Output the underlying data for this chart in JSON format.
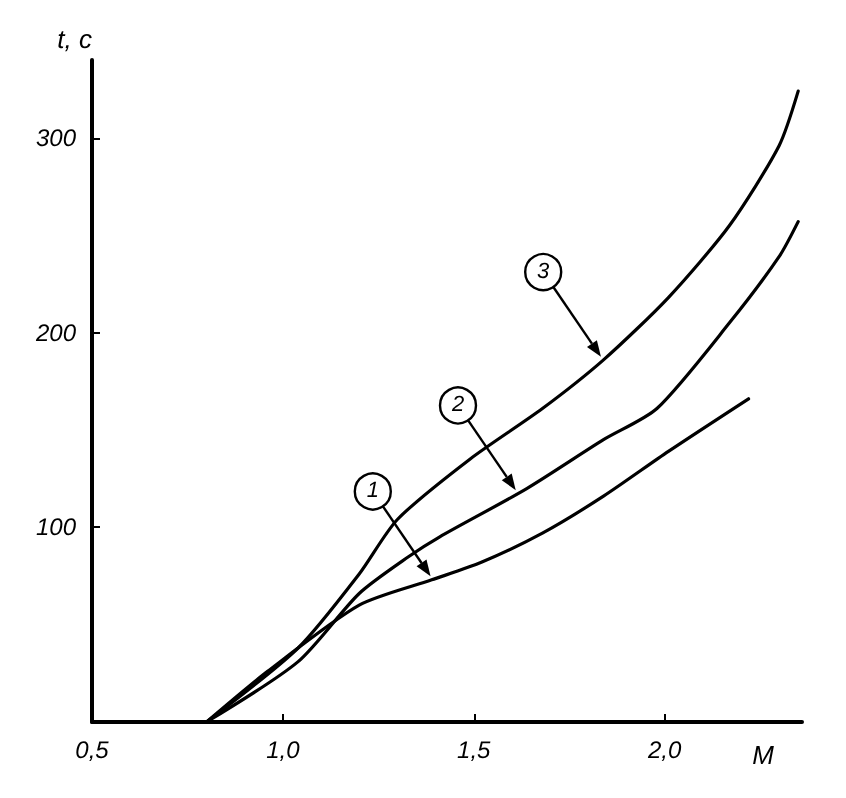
{
  "chart_data": {
    "type": "line",
    "xlabel": "M",
    "ylabel": "t, c",
    "xlim": [
      0.5,
      2.36
    ],
    "xticks": [
      {
        "value": 0.5,
        "label": "0,5"
      },
      {
        "value": 1.0,
        "label": "1,0"
      },
      {
        "value": 1.5,
        "label": "1,5"
      },
      {
        "value": 2.0,
        "label": "2,0"
      }
    ],
    "ylim": [
      0,
      340
    ],
    "yticks": [
      100,
      200,
      300
    ],
    "grid": false,
    "legend": false,
    "marker": "none",
    "line_style": "solid",
    "series": [
      {
        "name": "1",
        "color": "#000000",
        "x": [
          0.8,
          0.96,
          1.2,
          1.39,
          1.52,
          1.68,
          1.84,
          2.01,
          2.22
        ],
        "values": [
          0,
          26,
          60,
          73,
          82,
          97,
          116,
          139,
          166
        ]
      },
      {
        "name": "2",
        "color": "#000000",
        "x": [
          0.8,
          1.04,
          1.2,
          1.33,
          1.41,
          1.64,
          1.84,
          1.98,
          2.17,
          2.3,
          2.35
        ],
        "values": [
          0,
          31,
          66,
          85,
          95,
          120,
          145,
          161,
          205,
          239,
          257
        ]
      },
      {
        "name": "3",
        "color": "#000000",
        "x": [
          0.8,
          1.04,
          1.2,
          1.3,
          1.49,
          1.68,
          1.84,
          2.01,
          2.17,
          2.3,
          2.35
        ],
        "values": [
          0,
          38,
          76,
          104,
          135,
          161,
          186,
          218,
          255,
          296,
          324
        ]
      }
    ]
  }
}
